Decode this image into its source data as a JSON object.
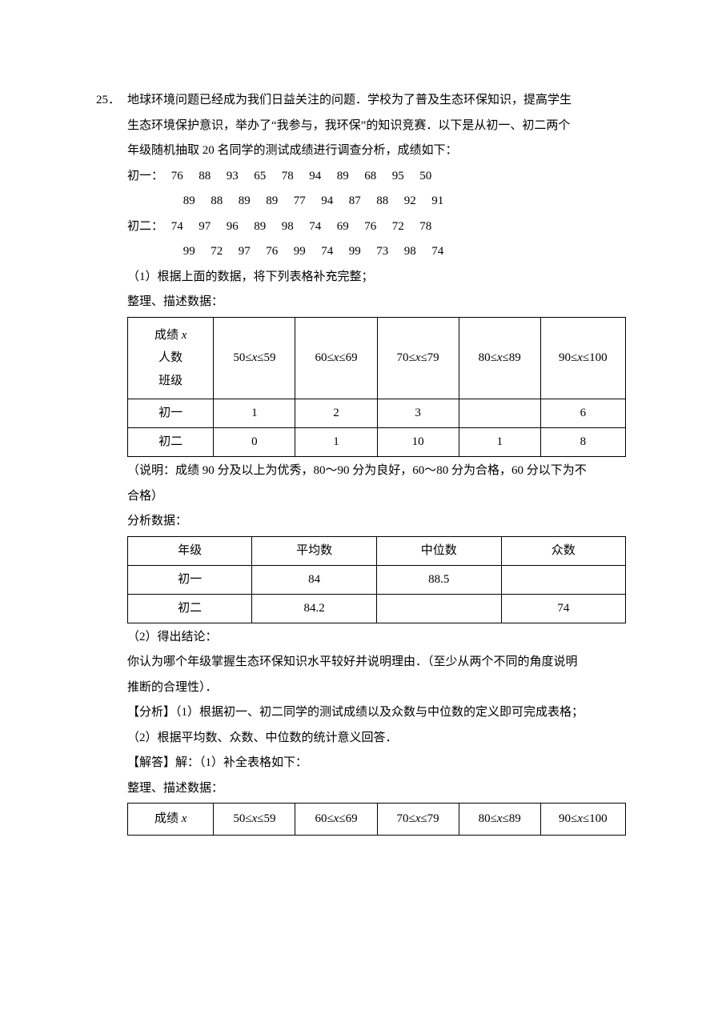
{
  "question_number": "25．",
  "intro": {
    "l1": "地球环境问题已经成为我们日益关注的问题．学校为了普及生态环保知识，提高学生",
    "l2": "生态环境保护意识，举办了“我参与，我环保”的知识竞赛．以下是从初一、初二两个",
    "l3": "年级随机抽取 20 名同学的测试成绩进行调查分析，成绩如下："
  },
  "row1": {
    "label": "初一：",
    "nums": [
      "76",
      "88",
      "93",
      "65",
      "78",
      "94",
      "89",
      "68",
      "95",
      "50"
    ]
  },
  "row2": {
    "nums": [
      "89",
      "88",
      "89",
      "89",
      "77",
      "94",
      "87",
      "88",
      "92",
      "91"
    ]
  },
  "row3": {
    "label": "初二：",
    "nums": [
      "74",
      "97",
      "96",
      "89",
      "98",
      "74",
      "69",
      "76",
      "72",
      "78"
    ]
  },
  "row4": {
    "nums": [
      "99",
      "72",
      "97",
      "76",
      "99",
      "74",
      "99",
      "73",
      "98",
      "74"
    ]
  },
  "q1": "（1）根据上面的数据，将下列表格补充完整；",
  "section_a": "整理、描述数据：",
  "table1": {
    "hdr_col0_l1": "成绩 ",
    "hdr_col0_var": "x",
    "hdr_col0_l2": "人数",
    "hdr_col0_l3": "班级",
    "c1": "50≤x≤59",
    "c2": "60≤x≤69",
    "c3": "70≤x≤79",
    "c4": "80≤x≤89",
    "c5": "90≤x≤100",
    "r1": {
      "label": "初一",
      "v1": "1",
      "v2": "2",
      "v3": "3",
      "v4": "",
      "v5": "6"
    },
    "r2": {
      "label": "初二",
      "v1": "0",
      "v2": "1",
      "v3": "10",
      "v4": "1",
      "v5": "8"
    }
  },
  "note": {
    "l1": "（说明：成绩 90 分及以上为优秀，80～90 分为良好，60～80 分为合格，60 分以下为不",
    "l2": "合格）"
  },
  "section_b": "分析数据：",
  "table2": {
    "h0": "年级",
    "h1": "平均数",
    "h2": "中位数",
    "h3": "众数",
    "r1": {
      "c0": "初一",
      "c1": "84",
      "c2": "88.5",
      "c3": ""
    },
    "r2": {
      "c0": "初二",
      "c1": "84.2",
      "c2": "",
      "c3": "74"
    }
  },
  "q2": "（2）得出结论：",
  "concl": {
    "l1": "你认为哪个年级掌握生态环保知识水平较好并说明理由．（至少从两个不同的角度说明",
    "l2": "推断的合理性）．"
  },
  "analysis": {
    "l1": "【分析】（1）根据初一、初二同学的测试成绩以及众数与中位数的定义即可完成表格；",
    "l2": "（2）根据平均数、众数、中位数的统计意义回答．"
  },
  "solution": "【解答】解：（1）补全表格如下：",
  "section_c": "整理、描述数据：",
  "table3": {
    "hdr_col0_l1": "成绩 ",
    "hdr_col0_var": "x",
    "c1": "50≤x≤59",
    "c2": "60≤x≤69",
    "c3": "70≤x≤79",
    "c4": "80≤x≤89",
    "c5": "90≤x≤100"
  }
}
